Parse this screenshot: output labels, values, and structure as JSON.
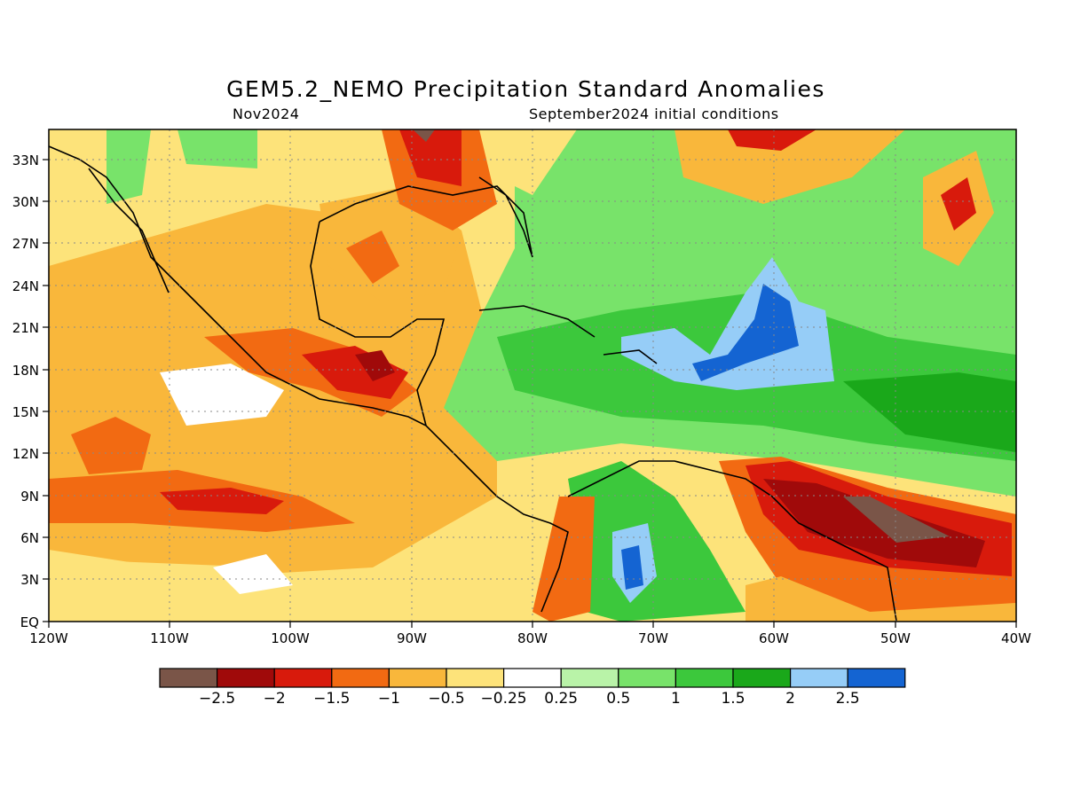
{
  "header": {
    "title": "GEM5.2_NEMO Precipitation Standard Anomalies",
    "valid_month": "Nov2024",
    "init": "September2024 initial conditions"
  },
  "axes": {
    "lat_labels": [
      "EQ",
      "3N",
      "6N",
      "9N",
      "12N",
      "15N",
      "18N",
      "21N",
      "24N",
      "27N",
      "30N",
      "33N"
    ],
    "lon_labels": [
      "120W",
      "110W",
      "100W",
      "90W",
      "80W",
      "70W",
      "60W",
      "50W",
      "40W"
    ]
  },
  "colorbar": {
    "colors": [
      "#7a5548",
      "#a00a0a",
      "#d81a0c",
      "#f26a12",
      "#f9b73b",
      "#fde37a",
      "#ffffff",
      "#b9f3a8",
      "#78e36a",
      "#3cc83c",
      "#1aa81a",
      "#96cdf7",
      "#1464d2"
    ],
    "labels": [
      "−2.5",
      "−2",
      "−1.5",
      "−1",
      "−0.5",
      "−0.25",
      "0.25",
      "0.5",
      "1",
      "1.5",
      "2",
      "2.5"
    ]
  },
  "legend_names": {
    "cat_-2.5": "−2.5",
    "cat_-2": "−2",
    "cat_-1.5": "−1.5",
    "cat_-1": "−1",
    "cat_-0.5": "−0.5",
    "cat_-0.25": "−0.25",
    "cat_0.25": "0.25",
    "cat_0.5": "0.5",
    "cat_1": "1",
    "cat_1.5": "1.5",
    "cat_2": "2",
    "cat_2.5": "2.5"
  }
}
